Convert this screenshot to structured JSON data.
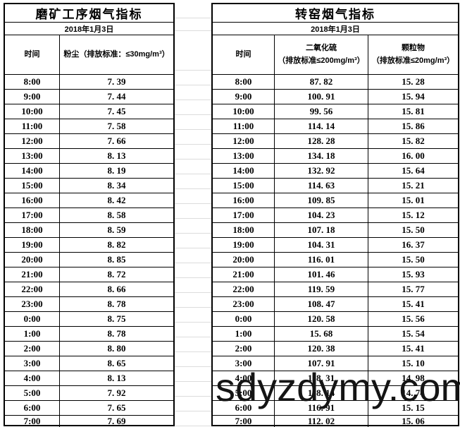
{
  "left_table": {
    "title": "磨矿工序烟气指标",
    "date": "2018年1月3日",
    "col_time": "时间",
    "col_dust": "粉尘（排放标准：≤30mg/m³）",
    "rows": [
      [
        "8:00",
        "7.39"
      ],
      [
        "9:00",
        "7.44"
      ],
      [
        "10:00",
        "7.45"
      ],
      [
        "11:00",
        "7.58"
      ],
      [
        "12:00",
        "7.66"
      ],
      [
        "13:00",
        "8.13"
      ],
      [
        "14:00",
        "8.19"
      ],
      [
        "15:00",
        "8.34"
      ],
      [
        "16:00",
        "8.42"
      ],
      [
        "17:00",
        "8.58"
      ],
      [
        "18:00",
        "8.59"
      ],
      [
        "19:00",
        "8.82"
      ],
      [
        "20:00",
        "8.85"
      ],
      [
        "21:00",
        "8.72"
      ],
      [
        "22:00",
        "8.66"
      ],
      [
        "23:00",
        "8.78"
      ],
      [
        "0:00",
        "8.75"
      ],
      [
        "1:00",
        "8.78"
      ],
      [
        "2:00",
        "8.80"
      ],
      [
        "3:00",
        "8.65"
      ],
      [
        "4:00",
        "8.13"
      ],
      [
        "5:00",
        "7.92"
      ],
      [
        "6:00",
        "7.65"
      ],
      [
        "7:00",
        "7.69"
      ]
    ]
  },
  "right_table": {
    "title": "转窑烟气指标",
    "date": "2018年1月3日",
    "col_time": "时间",
    "col_so2_name": "二氧化硫",
    "col_so2_std": "（排放标准≤200mg/m³）",
    "col_pm_name": "颗粒物",
    "col_pm_std": "（排放标准≤20mg/m³）",
    "rows": [
      [
        "8:00",
        "87.82",
        "15.28"
      ],
      [
        "9:00",
        "100.91",
        "15.94"
      ],
      [
        "10:00",
        "99.56",
        "15.81"
      ],
      [
        "11:00",
        "114.14",
        "15.86"
      ],
      [
        "12:00",
        "128.28",
        "15.82"
      ],
      [
        "13:00",
        "134.18",
        "16.00"
      ],
      [
        "14:00",
        "132.92",
        "15.64"
      ],
      [
        "15:00",
        "114.63",
        "15.21"
      ],
      [
        "16:00",
        "109.85",
        "15.01"
      ],
      [
        "17:00",
        "104.23",
        "15.12"
      ],
      [
        "18:00",
        "107.18",
        "15.50"
      ],
      [
        "19:00",
        "104.31",
        "16.37"
      ],
      [
        "20:00",
        "116.01",
        "15.50"
      ],
      [
        "21:00",
        "101.46",
        "15.93"
      ],
      [
        "22:00",
        "119.59",
        "15.77"
      ],
      [
        "23:00",
        "108.47",
        "15.41"
      ],
      [
        "0:00",
        "120.58",
        "15.56"
      ],
      [
        "1:00",
        "15.68",
        "15.54"
      ],
      [
        "2:00",
        "120.38",
        "15.41"
      ],
      [
        "3:00",
        "107.91",
        "15.10"
      ],
      [
        "4:00",
        "118.31",
        "14.98"
      ],
      [
        "5:00",
        "118.14",
        "14.74"
      ],
      [
        "6:00",
        "116.91",
        "15.15"
      ],
      [
        "7:00",
        "112.02",
        "15.06"
      ]
    ]
  },
  "watermark": "sdyzdymy.com",
  "colors": {
    "border": "#000000",
    "gridline": "#dcdcdc",
    "watermark_text": "#141414",
    "text": "#000000"
  }
}
